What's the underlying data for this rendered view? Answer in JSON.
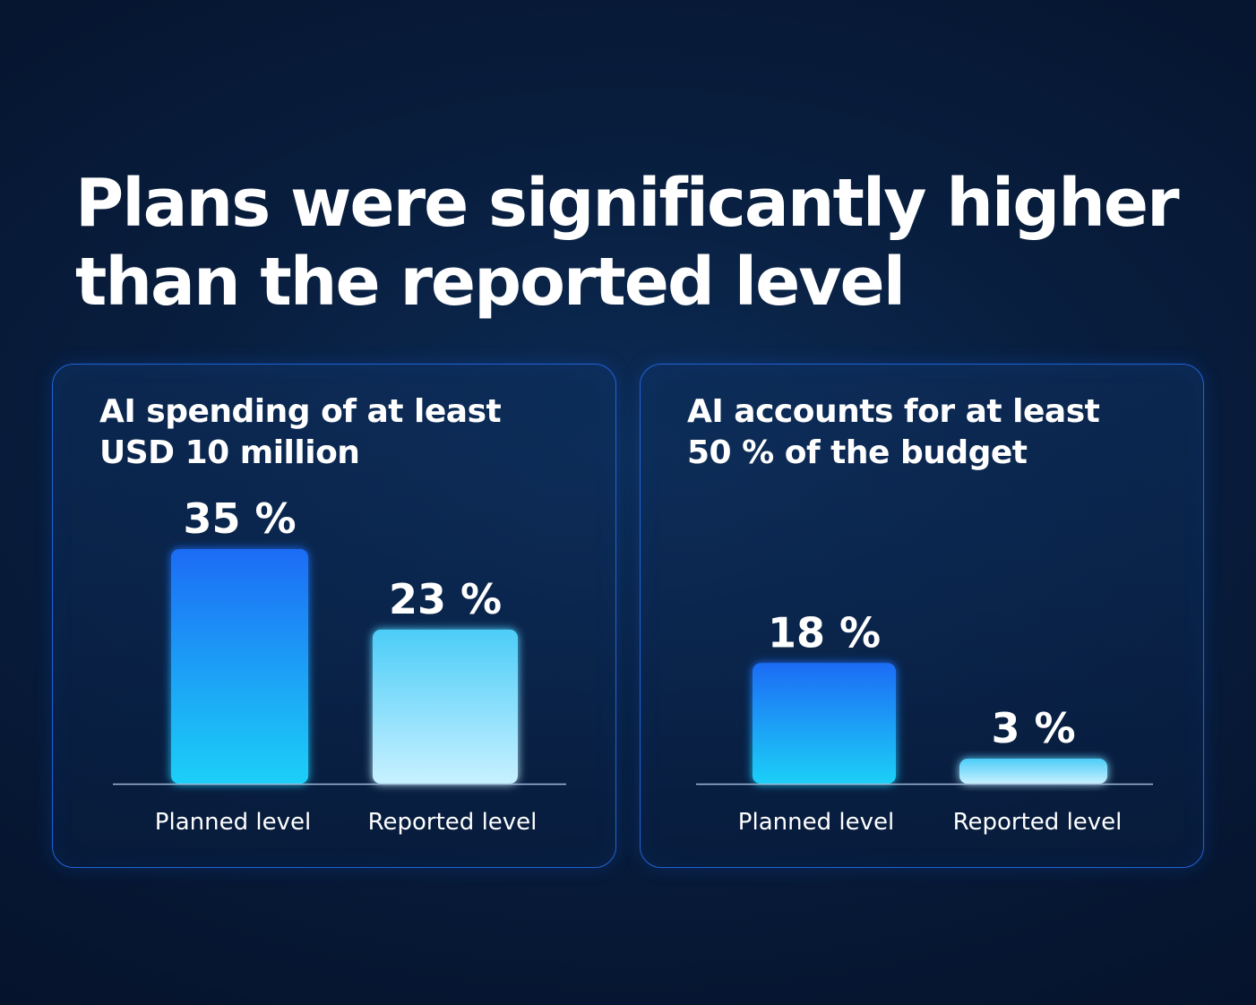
{
  "headline": {
    "line1": "Plans were significantly higher",
    "line2": "than the reported level"
  },
  "colors": {
    "planned_top": "#1a6cf5",
    "planned_bottom": "#1fd0f7",
    "reported_top": "#4ccdf8",
    "reported_bottom": "#c8f1ff",
    "panel_border": "#1f63d6"
  },
  "chart_data": [
    {
      "type": "bar",
      "title_lines": [
        "AI spending of at least",
        "USD 10 million"
      ],
      "categories": [
        "Planned level",
        "Reported level"
      ],
      "values": [
        35,
        23
      ],
      "value_labels": [
        "35 %",
        "23 %"
      ],
      "ylim": [
        0,
        35
      ]
    },
    {
      "type": "bar",
      "title_lines": [
        "AI accounts for at least",
        "50 % of the budget"
      ],
      "categories": [
        "Planned level",
        "Reported level"
      ],
      "values": [
        18,
        3
      ],
      "value_labels": [
        "18 %",
        "3 %"
      ],
      "ylim": [
        0,
        35
      ]
    }
  ]
}
